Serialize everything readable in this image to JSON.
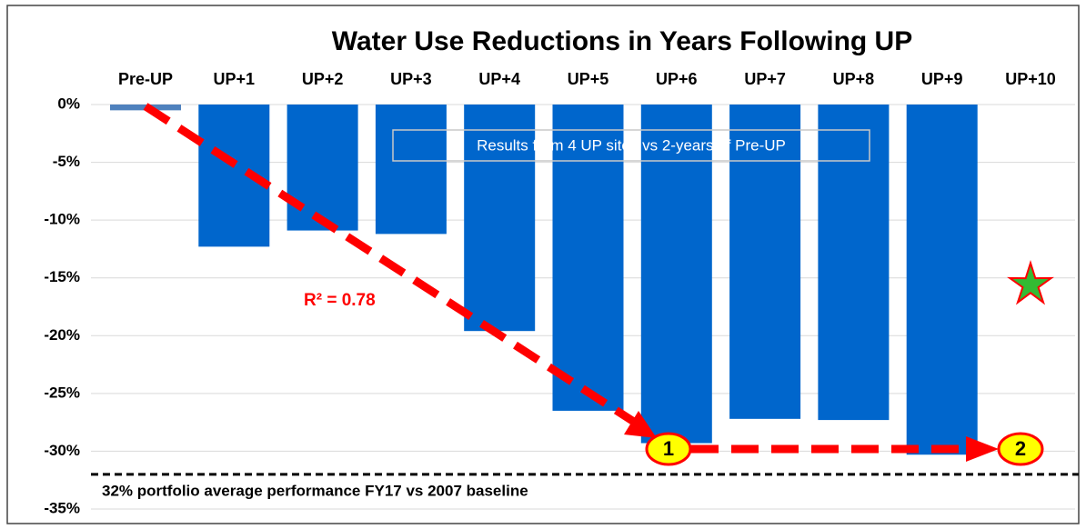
{
  "chart_data": {
    "type": "bar",
    "title": "Water Use Reductions in Years Following UP",
    "categories": [
      "Pre-UP",
      "UP+1",
      "UP+2",
      "UP+3",
      "UP+4",
      "UP+5",
      "UP+6",
      "UP+7",
      "UP+8",
      "UP+9",
      "UP+10"
    ],
    "values": [
      -0.5,
      -12.3,
      -10.9,
      -11.2,
      -19.6,
      -26.5,
      -29.3,
      -27.2,
      -27.3,
      -30.3,
      null
    ],
    "color": "#0066cc",
    "first_bar_color": "#4f81bd",
    "ylim": [
      -35,
      0
    ],
    "yticks": [
      {
        "value": 0,
        "label": "0%"
      },
      {
        "value": -5,
        "label": "-5%"
      },
      {
        "value": -10,
        "label": "-10%"
      },
      {
        "value": -15,
        "label": "-15%"
      },
      {
        "value": -20,
        "label": "-20%"
      },
      {
        "value": -25,
        "label": "-25%"
      },
      {
        "value": -30,
        "label": "-30%"
      },
      {
        "value": -35,
        "label": "-35%"
      }
    ],
    "grid": true,
    "note_box": "Results from 4 UP sites vs 2-years of Pre-UP",
    "r_squared_label": "R² = 0.78",
    "reference": {
      "value": -32,
      "label": "32% portfolio average performance FY17 vs 2007 baseline"
    },
    "star_value": -15.6,
    "markers": [
      "1",
      "2"
    ]
  }
}
